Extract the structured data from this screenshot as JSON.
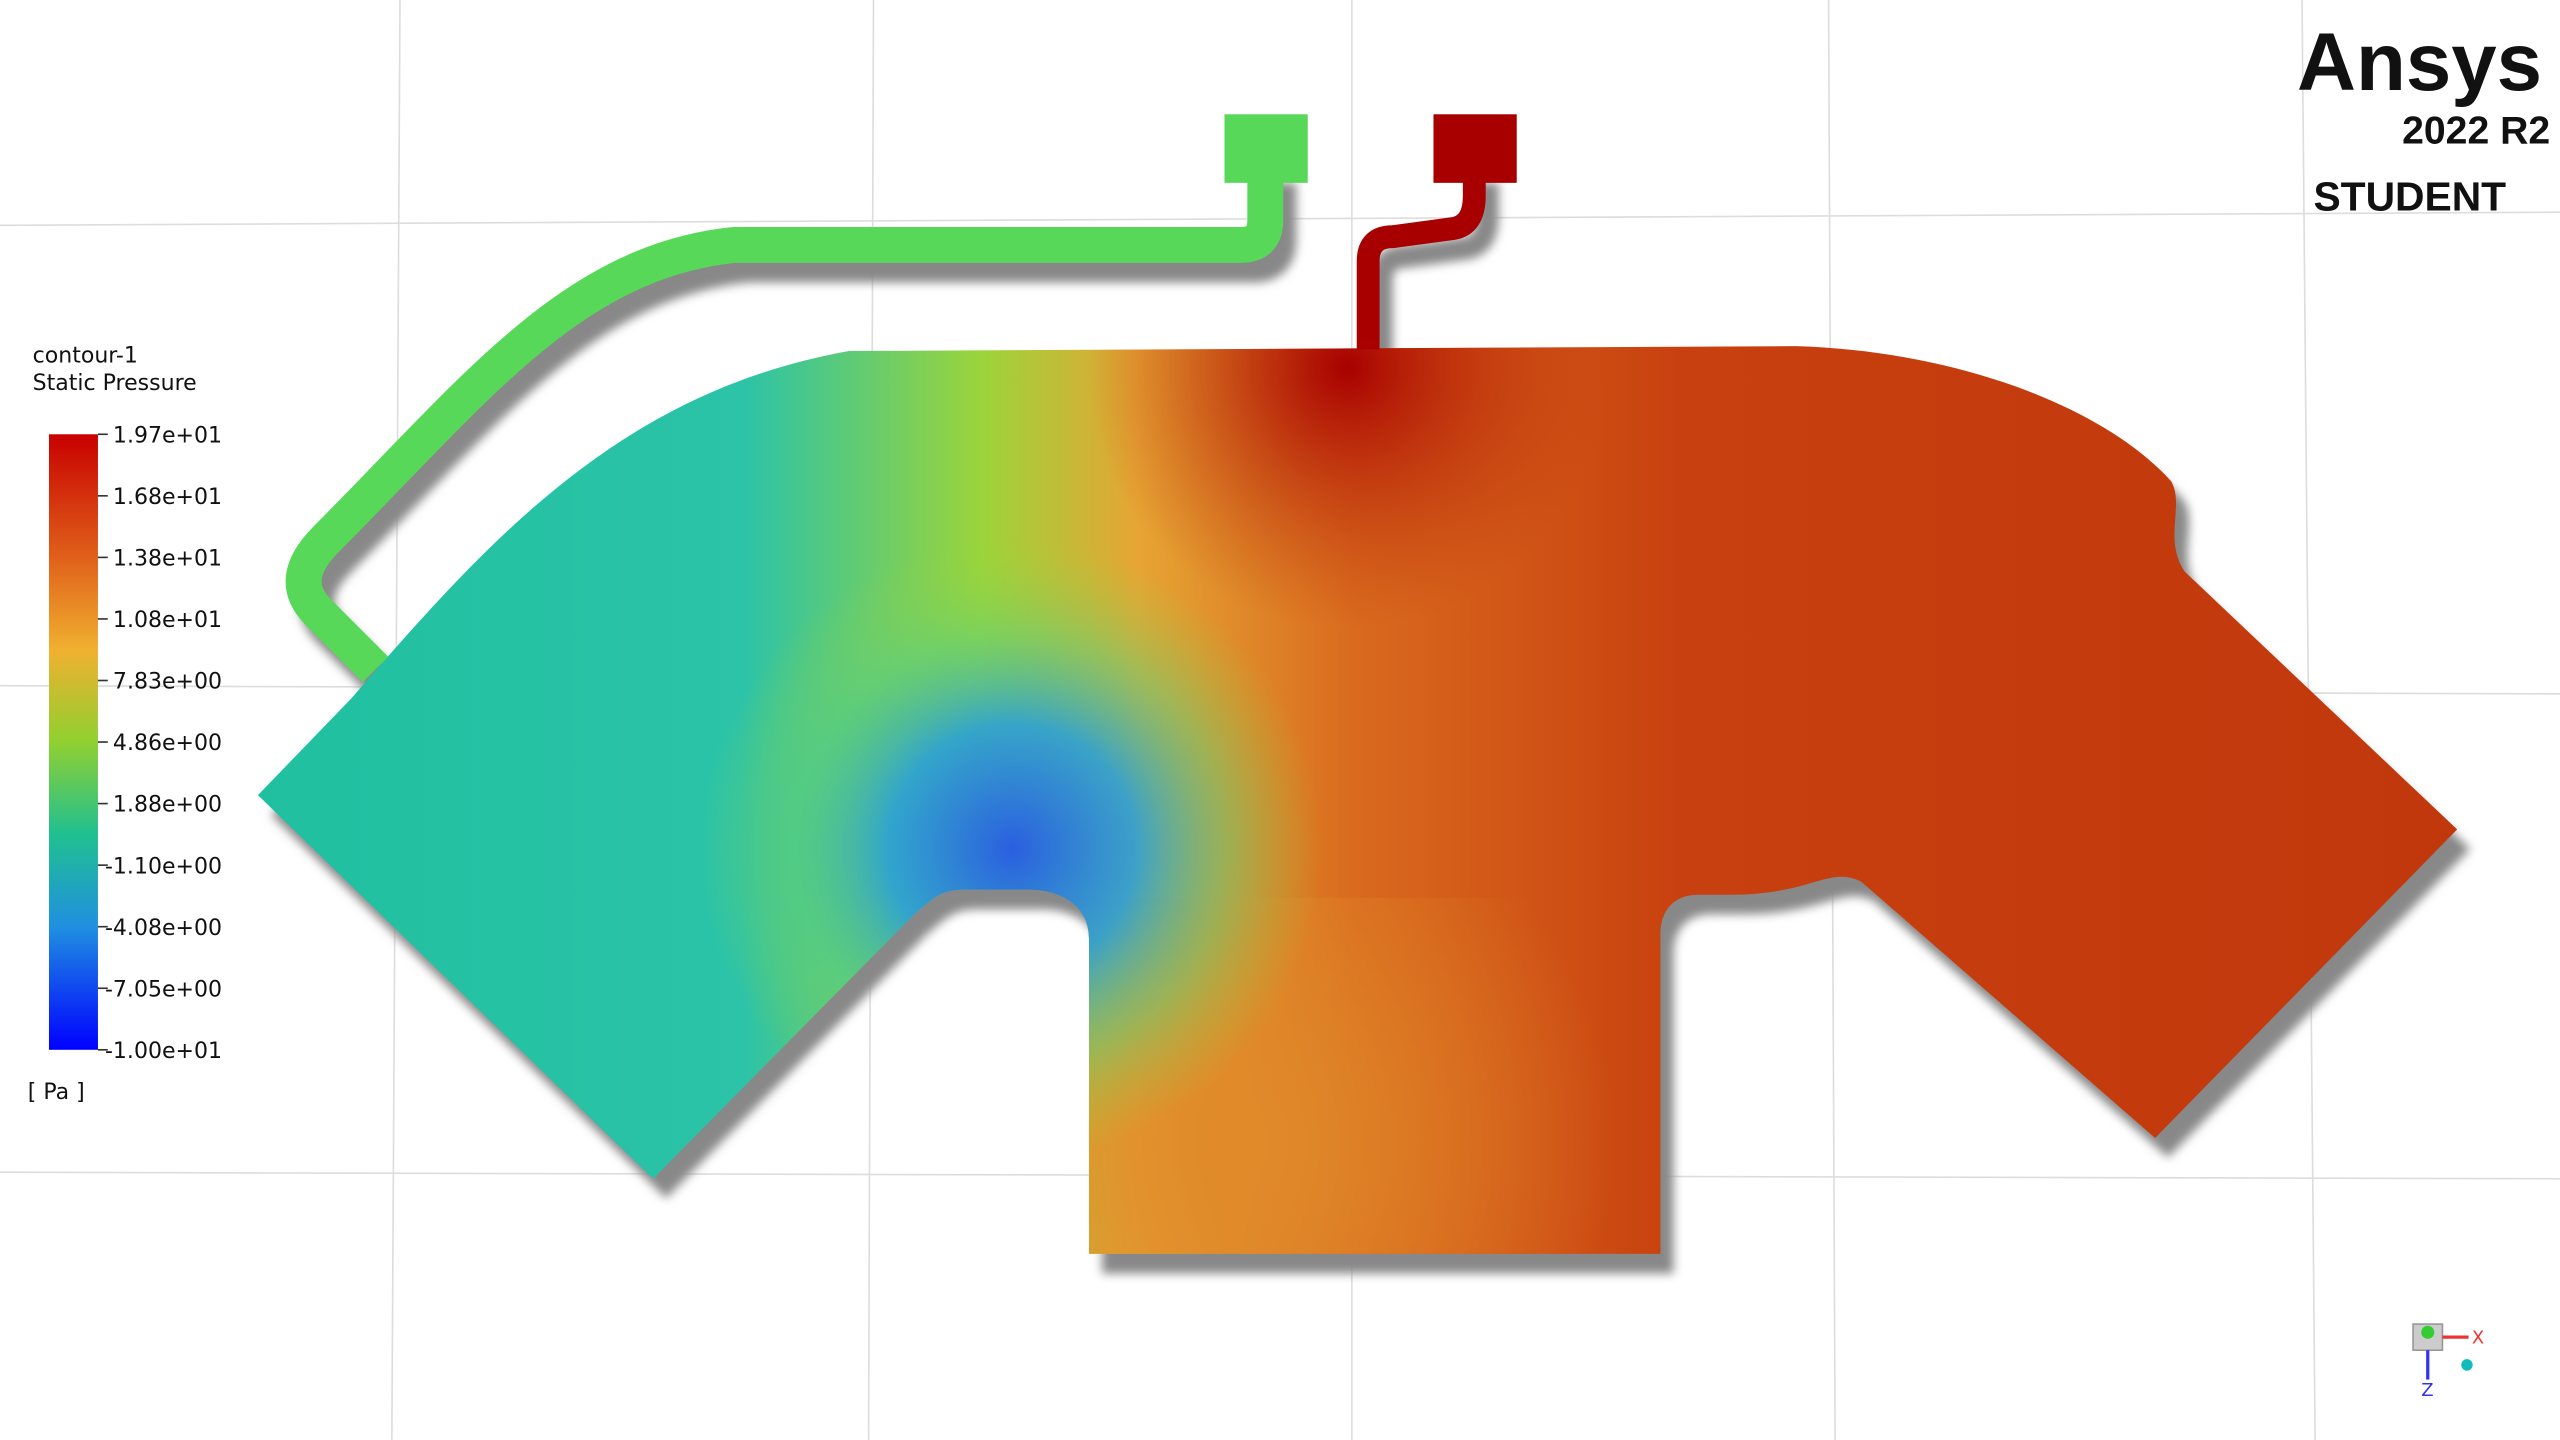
{
  "legend": {
    "title": "contour-1",
    "variable": "Static Pressure",
    "labels": [
      "1.97e+01",
      "1.68e+01",
      "1.38e+01",
      "1.08e+01",
      "7.83e+00",
      "4.86e+00",
      "1.88e+00",
      "-1.10e+00",
      "-4.08e+00",
      "-7.05e+00",
      "-1.00e+01"
    ],
    "units": "[ Pa ]"
  },
  "logo": {
    "brand": "Ansys",
    "version": "2022 R2",
    "edition": "STUDENT"
  },
  "triad": {
    "x": "X",
    "z": "Z"
  }
}
